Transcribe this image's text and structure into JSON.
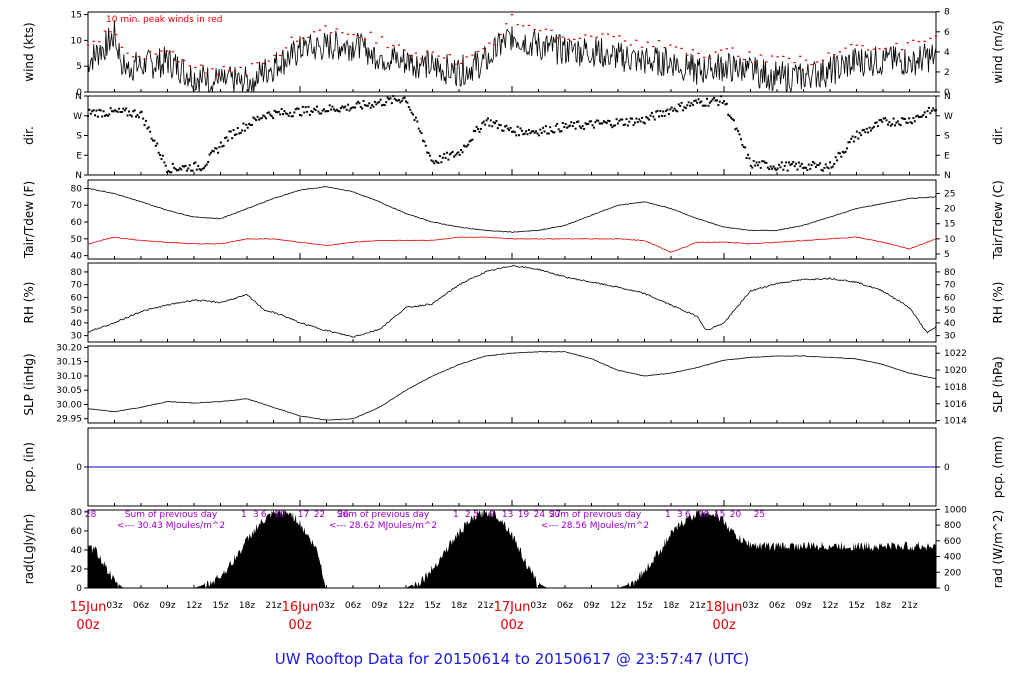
{
  "title": "UW Rooftop Data for 20150614  to  20150617 @ 23:57:47  (UTC)",
  "annotation_wind": "10 min. peak winds in red",
  "time_axis": {
    "day_labels": [
      {
        "date": "15Jun",
        "time": "00z"
      },
      {
        "date": "16Jun",
        "time": "00z"
      },
      {
        "date": "17Jun",
        "time": "00z"
      },
      {
        "date": "18Jun",
        "time": "00z"
      }
    ],
    "hour_ticks": [
      "03z",
      "06z",
      "09z",
      "12z",
      "15z",
      "18z",
      "21z"
    ]
  },
  "colors": {
    "line": "#000000",
    "peak": "#e00000",
    "dew": "#e00000",
    "precip": "#0000cc",
    "daylabel": "#e00000",
    "solartext": "#9a00c8",
    "title": "#1a1adc"
  },
  "chart_data": [
    {
      "type": "line",
      "name": "wind",
      "ylabel_left": "wind (kts)",
      "ylabel_right": "wind (m/s)",
      "yticks_left": [
        "0",
        "5",
        "10",
        "15"
      ],
      "yticks_right": [
        "0",
        "2",
        "4",
        "6",
        "8"
      ],
      "ylim": [
        0,
        15.5
      ],
      "x_hours": [
        0,
        2,
        3,
        4,
        6,
        9,
        12,
        15,
        18,
        21,
        24,
        27,
        30,
        33,
        36,
        39,
        42,
        45,
        48,
        51,
        54,
        57,
        60,
        63,
        66,
        69,
        72,
        75,
        78,
        81,
        84,
        87,
        90,
        93,
        96
      ],
      "values": [
        6,
        9,
        11,
        5,
        5,
        6,
        3,
        2,
        2,
        5,
        8,
        9,
        9,
        7,
        6,
        5,
        4,
        6,
        11,
        9,
        8,
        8,
        7,
        6,
        6,
        4,
        5,
        4,
        3,
        3,
        4,
        6,
        6,
        6,
        7
      ],
      "peak_series": [
        9,
        11,
        12,
        7,
        7,
        8,
        5,
        4,
        4,
        7,
        11,
        12,
        12,
        10,
        8,
        7,
        6,
        8,
        14,
        12,
        11,
        11,
        10,
        9,
        9,
        7,
        8,
        7,
        6,
        6,
        7,
        9,
        9,
        9,
        10
      ]
    },
    {
      "type": "scatter",
      "name": "wind direction",
      "ylabel_left": "dir.",
      "ylabel_right": "dir.",
      "yticks_left": [
        "N",
        "E",
        "S",
        "W",
        "N"
      ],
      "yticks_right": [
        "N",
        "E",
        "S",
        "W",
        "N"
      ],
      "ylim": [
        0,
        360
      ],
      "x_hours": [
        0,
        4,
        6,
        9,
        13,
        16,
        20,
        24,
        27,
        30,
        33,
        36,
        39,
        42,
        45,
        48,
        51,
        54,
        57,
        60,
        63,
        66,
        69,
        72,
        75,
        78,
        81,
        84,
        87,
        90,
        93,
        96
      ],
      "values": [
        285,
        285,
        280,
        30,
        40,
        180,
        275,
        290,
        300,
        310,
        330,
        350,
        60,
        100,
        250,
        200,
        200,
        220,
        230,
        240,
        250,
        300,
        330,
        340,
        50,
        40,
        40,
        40,
        180,
        240,
        250,
        300
      ]
    },
    {
      "type": "line",
      "name": "temperature",
      "ylabel_left": "Tair/Tdew (F)",
      "ylabel_right": "Tair/Tdew (C)",
      "yticks_left": [
        "40",
        "50",
        "60",
        "70",
        "80"
      ],
      "yticks_right": [
        "5",
        "10",
        "15",
        "20",
        "25"
      ],
      "ylim": [
        38,
        85
      ],
      "x_hours": [
        0,
        3,
        6,
        9,
        12,
        15,
        18,
        21,
        24,
        27,
        30,
        33,
        36,
        39,
        42,
        45,
        48,
        51,
        54,
        57,
        60,
        63,
        66,
        69,
        72,
        75,
        78,
        81,
        84,
        87,
        90,
        93,
        96
      ],
      "series": [
        {
          "values": [
            80,
            77,
            72,
            67,
            63,
            62,
            68,
            74,
            79,
            81,
            78,
            72,
            65,
            60,
            57,
            55,
            54,
            55,
            58,
            64,
            70,
            72,
            68,
            62,
            57,
            55,
            55,
            58,
            63,
            68,
            71,
            74,
            75
          ]
        },
        {
          "values": [
            47,
            51,
            49,
            48,
            47,
            47,
            50,
            50,
            48,
            46,
            48,
            49,
            49,
            49,
            51,
            51,
            50,
            50,
            50,
            50,
            50,
            49,
            42,
            48,
            48,
            47,
            48,
            49,
            50,
            51,
            48,
            44,
            50
          ]
        }
      ]
    },
    {
      "type": "line",
      "name": "relative humidity",
      "ylabel_left": "RH (%)",
      "ylabel_right": "RH (%)",
      "yticks_left": [
        "30",
        "40",
        "50",
        "60",
        "70",
        "80"
      ],
      "yticks_right": [
        "30",
        "40",
        "50",
        "60",
        "70",
        "80"
      ],
      "ylim": [
        25,
        87
      ],
      "x_hours": [
        0,
        3,
        6,
        9,
        12,
        15,
        18,
        20,
        22,
        24,
        27,
        30,
        33,
        36,
        39,
        42,
        45,
        48,
        51,
        54,
        57,
        60,
        63,
        66,
        69,
        70,
        72,
        75,
        78,
        81,
        84,
        87,
        90,
        93,
        95,
        96
      ],
      "values": [
        33,
        40,
        49,
        54,
        58,
        56,
        62,
        50,
        46,
        40,
        34,
        29,
        35,
        52,
        55,
        70,
        80,
        85,
        82,
        76,
        72,
        68,
        63,
        54,
        45,
        34,
        40,
        65,
        71,
        74,
        75,
        72,
        65,
        52,
        32,
        37
      ]
    },
    {
      "type": "line",
      "name": "sea level pressure",
      "ylabel_left": "SLP (inHg)",
      "ylabel_right": "SLP (hPa)",
      "yticks_left": [
        "29.95",
        "30.00",
        "30.05",
        "30.10",
        "30.15",
        "30.20"
      ],
      "yticks_right": [
        "1014",
        "1016",
        "1018",
        "1020",
        "1022"
      ],
      "ylim": [
        29.935,
        30.205
      ],
      "x_hours": [
        0,
        3,
        6,
        9,
        12,
        15,
        18,
        21,
        24,
        27,
        30,
        33,
        36,
        39,
        42,
        45,
        48,
        51,
        54,
        57,
        60,
        63,
        66,
        69,
        72,
        75,
        78,
        81,
        84,
        87,
        90,
        93,
        96
      ],
      "values": [
        29.985,
        29.975,
        29.99,
        30.01,
        30.005,
        30.01,
        30.02,
        29.99,
        29.96,
        29.945,
        29.95,
        29.99,
        30.05,
        30.1,
        30.14,
        30.17,
        30.18,
        30.185,
        30.185,
        30.16,
        30.12,
        30.1,
        30.11,
        30.13,
        30.155,
        30.165,
        30.17,
        30.17,
        30.165,
        30.16,
        30.14,
        30.11,
        30.09
      ]
    },
    {
      "type": "line",
      "name": "precipitation",
      "ylabel_left": "pcp. (in)",
      "ylabel_right": "pcp. (mm)",
      "yticks_left": [
        "0"
      ],
      "yticks_right": [
        "0"
      ],
      "ylim": [
        -1,
        1
      ],
      "x_hours": [
        0,
        96
      ],
      "values": [
        0,
        0
      ]
    },
    {
      "type": "area",
      "name": "solar radiation",
      "ylabel_left": "rad(Lgly/hr)",
      "ylabel_right": "rad (W/m^2)",
      "yticks_left": [
        "0",
        "20",
        "40",
        "60",
        "80"
      ],
      "yticks_right": [
        "0",
        "200",
        "400",
        "600",
        "800",
        "1000"
      ],
      "ylim": [
        0,
        82
      ],
      "x_hours": [
        0,
        1,
        2,
        3,
        4,
        12,
        13,
        14,
        15,
        16,
        17,
        18,
        19,
        20,
        21,
        22,
        23,
        24,
        25,
        26,
        27,
        36,
        37,
        38,
        39,
        40,
        41,
        42,
        43,
        44,
        45,
        46,
        47,
        48,
        49,
        50,
        51,
        52,
        60,
        61,
        62,
        63,
        64,
        65,
        66,
        67,
        68,
        69,
        70,
        71,
        72,
        73,
        74,
        75,
        76,
        96
      ],
      "values": [
        46,
        40,
        25,
        8,
        0,
        0,
        3,
        8,
        15,
        25,
        38,
        52,
        65,
        73,
        80,
        82,
        80,
        70,
        55,
        40,
        0,
        0,
        5,
        12,
        22,
        35,
        48,
        60,
        70,
        78,
        82,
        80,
        72,
        58,
        40,
        20,
        5,
        0,
        0,
        3,
        10,
        20,
        32,
        45,
        58,
        68,
        76,
        80,
        82,
        80,
        72,
        60,
        52,
        48,
        46,
        46
      ],
      "daily_sums": [
        {
          "label": "Sum of previous day",
          "value": "<--- 30.43 MJoules/m^2"
        },
        {
          "label": "Sum of previous day",
          "value": "<--- 28.62 MJoules/m^2"
        },
        {
          "label": "Sum of previous day",
          "value": "<--- 28.56 MJoules/m^2"
        }
      ],
      "top_marks": [
        "28",
        "1",
        "3",
        "6",
        "10",
        "17",
        "22",
        "26",
        "1",
        "2",
        "5",
        "9",
        "13",
        "19",
        "24",
        "27",
        "1",
        "3",
        "6",
        "10",
        "15",
        "20",
        "25"
      ]
    }
  ]
}
